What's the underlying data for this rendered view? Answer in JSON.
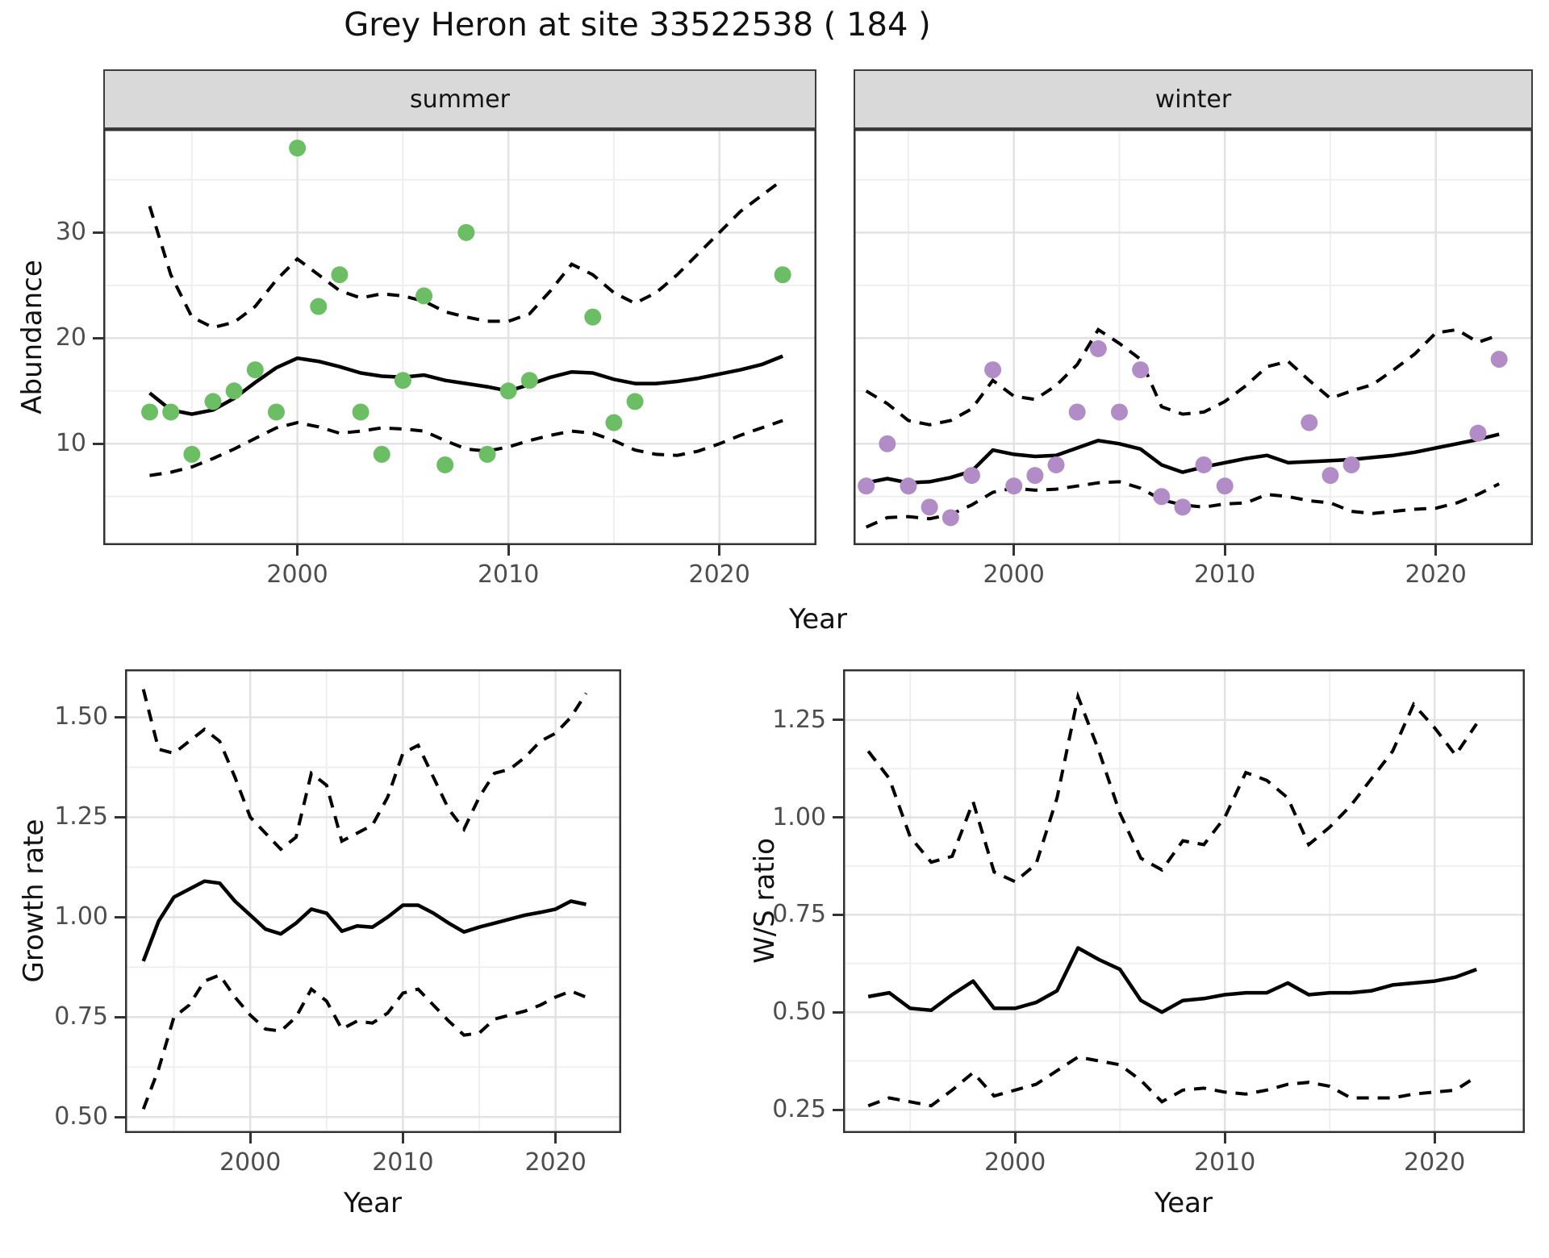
{
  "title": "Grey Heron at site 33522538 ( 184 )",
  "labels": {
    "year": "Year",
    "abundance": "Abundance"
  },
  "style": {
    "point_green": "#6CBE64",
    "point_purple": "#B28CC6",
    "line_color": "#000000",
    "grid_major": "#e2e2e2",
    "grid_minor": "#efefef",
    "panel_border": "#333333",
    "strip_bg": "#d9d9d9",
    "tick_text": "#4d4d4d"
  },
  "chart_data": [
    {
      "id": "summer",
      "type": "line",
      "facet": "summer",
      "title": "summer facet: abundance observations with model fit and dashed 95% interval",
      "xlabel": "Year",
      "ylabel": "Abundance",
      "x_range": [
        1990.8,
        2024.6
      ],
      "y_range": [
        0.4,
        39.8
      ],
      "x_major": [
        2000,
        2010,
        2020
      ],
      "x_minor": [
        1995,
        2005,
        2015
      ],
      "y_major": [
        10,
        20,
        30
      ],
      "y_minor": [
        5,
        15,
        25,
        35
      ],
      "x_tick_labels": [
        "2000",
        "2010",
        "2020"
      ],
      "y_tick_labels": [
        "10",
        "20",
        "30"
      ],
      "show_y_labels": true,
      "years": [
        1993,
        1994,
        1995,
        1996,
        1997,
        1998,
        1999,
        2000,
        2001,
        2002,
        2003,
        2004,
        2005,
        2006,
        2007,
        2008,
        2009,
        2010,
        2011,
        2012,
        2013,
        2014,
        2015,
        2016,
        2017,
        2018,
        2019,
        2020,
        2021,
        2022,
        2023
      ],
      "fit": [
        14.8,
        13.2,
        12.8,
        13.2,
        14.3,
        15.8,
        17.2,
        18.1,
        17.8,
        17.3,
        16.7,
        16.4,
        16.3,
        16.5,
        16.0,
        15.7,
        15.4,
        15.0,
        15.6,
        16.3,
        16.8,
        16.7,
        16.1,
        15.7,
        15.7,
        15.9,
        16.2,
        16.6,
        17.0,
        17.5,
        18.3
      ],
      "upper": [
        32.5,
        26.0,
        22.0,
        21.0,
        21.5,
        23.0,
        25.5,
        27.5,
        26.0,
        24.5,
        23.8,
        24.2,
        24.0,
        23.5,
        22.5,
        22.0,
        21.6,
        21.6,
        22.3,
        24.5,
        27.0,
        26.0,
        24.3,
        23.3,
        24.3,
        26.0,
        28.0,
        30.0,
        32.0,
        33.5,
        35.0
      ],
      "lower": [
        7.0,
        7.3,
        7.8,
        8.6,
        9.5,
        10.5,
        11.5,
        12.0,
        11.6,
        11.0,
        11.2,
        11.5,
        11.4,
        11.2,
        10.3,
        9.5,
        9.3,
        9.7,
        10.3,
        10.8,
        11.2,
        11.0,
        10.3,
        9.4,
        9.0,
        8.9,
        9.3,
        10.0,
        10.8,
        11.5,
        12.2
      ],
      "points": {
        "years": [
          1993,
          1994,
          1995,
          1996,
          1997,
          1998,
          1999,
          2000,
          2001,
          2002,
          2003,
          2004,
          2005,
          2006,
          2007,
          2008,
          2009,
          2010,
          2011,
          2014,
          2015,
          2016,
          2023
        ],
        "values": [
          13,
          13,
          9,
          14,
          15,
          17,
          13,
          38,
          23,
          26,
          13,
          9,
          16,
          24,
          8,
          30,
          9,
          15,
          16,
          22,
          12,
          14,
          26
        ]
      },
      "point_color": "#6CBE64"
    },
    {
      "id": "winter",
      "type": "line",
      "facet": "winter",
      "title": "winter facet: abundance observations with model fit and dashed 95% interval",
      "xlabel": "Year",
      "ylabel": "Abundance",
      "x_range": [
        1992.4,
        2024.6
      ],
      "y_range": [
        0.4,
        39.8
      ],
      "x_major": [
        2000,
        2010,
        2020
      ],
      "x_minor": [
        1995,
        2005,
        2015
      ],
      "y_major": [
        10,
        20,
        30
      ],
      "y_minor": [
        5,
        15,
        25,
        35
      ],
      "x_tick_labels": [
        "2000",
        "2010",
        "2020"
      ],
      "y_tick_labels": [
        "10",
        "20",
        "30"
      ],
      "show_y_labels": false,
      "years": [
        1993,
        1994,
        1995,
        1996,
        1997,
        1998,
        1999,
        2000,
        2001,
        2002,
        2003,
        2004,
        2005,
        2006,
        2007,
        2008,
        2009,
        2010,
        2011,
        2012,
        2013,
        2014,
        2015,
        2016,
        2017,
        2018,
        2019,
        2020,
        2021,
        2022,
        2023
      ],
      "fit": [
        6.3,
        6.7,
        6.3,
        6.4,
        6.8,
        7.4,
        9.4,
        9.0,
        8.8,
        8.9,
        9.6,
        10.3,
        10.0,
        9.5,
        8.0,
        7.3,
        7.8,
        8.2,
        8.6,
        8.9,
        8.2,
        8.3,
        8.4,
        8.5,
        8.7,
        8.9,
        9.2,
        9.6,
        10.0,
        10.4,
        10.9
      ],
      "upper": [
        15.0,
        13.8,
        12.2,
        11.8,
        12.2,
        13.3,
        16.0,
        14.5,
        14.2,
        15.5,
        17.5,
        20.8,
        19.5,
        18.0,
        13.5,
        12.8,
        13.0,
        14.0,
        15.5,
        17.3,
        17.8,
        16.0,
        14.3,
        15.0,
        15.6,
        17.0,
        18.5,
        20.5,
        20.8,
        19.6,
        20.3
      ],
      "lower": [
        2.1,
        3.0,
        3.1,
        2.9,
        3.3,
        4.2,
        5.4,
        5.8,
        5.6,
        5.7,
        6.0,
        6.3,
        6.4,
        5.8,
        4.7,
        4.2,
        4.0,
        4.3,
        4.4,
        5.2,
        5.0,
        4.6,
        4.4,
        3.6,
        3.4,
        3.6,
        3.8,
        3.9,
        4.4,
        5.2,
        6.2
      ],
      "points": {
        "years": [
          1993,
          1994,
          1995,
          1996,
          1997,
          1998,
          1999,
          2000,
          2001,
          2002,
          2003,
          2004,
          2005,
          2006,
          2007,
          2008,
          2009,
          2010,
          2014,
          2015,
          2016,
          2022,
          2023
        ],
        "values": [
          6,
          10,
          6,
          4,
          3,
          7,
          17,
          6,
          7,
          8,
          13,
          19,
          13,
          17,
          5,
          4,
          8,
          6,
          12,
          7,
          8,
          11,
          18
        ]
      },
      "point_color": "#B28CC6"
    },
    {
      "id": "growth",
      "type": "line",
      "facet": null,
      "title": "Annual growth rate with dashed 95% interval",
      "xlabel": "Year",
      "ylabel": "Growth rate",
      "x_range": [
        1991.8,
        2024.3
      ],
      "y_range": [
        0.46,
        1.62
      ],
      "x_major": [
        2000,
        2010,
        2020
      ],
      "x_minor": [
        1995,
        2005,
        2015
      ],
      "y_major": [
        0.5,
        0.75,
        1.0,
        1.25,
        1.5
      ],
      "y_minor": [
        0.625,
        0.875,
        1.125,
        1.375
      ],
      "x_tick_labels": [
        "2000",
        "2010",
        "2020"
      ],
      "y_tick_labels": [
        "0.50",
        "0.75",
        "1.00",
        "1.25",
        "1.50"
      ],
      "show_y_labels": true,
      "years": [
        1993,
        1994,
        1995,
        1996,
        1997,
        1998,
        1999,
        2000,
        2001,
        2002,
        2003,
        2004,
        2005,
        2006,
        2007,
        2008,
        2009,
        2010,
        2011,
        2012,
        2013,
        2014,
        2015,
        2016,
        2017,
        2018,
        2019,
        2020,
        2021,
        2022
      ],
      "fit": [
        0.89,
        0.99,
        1.05,
        1.07,
        1.09,
        1.085,
        1.04,
        1.005,
        0.97,
        0.958,
        0.985,
        1.02,
        1.01,
        0.965,
        0.978,
        0.975,
        1.0,
        1.03,
        1.03,
        1.01,
        0.985,
        0.963,
        0.975,
        0.985,
        0.995,
        1.005,
        1.012,
        1.02,
        1.04,
        1.032
      ],
      "upper": [
        1.57,
        1.42,
        1.41,
        1.44,
        1.47,
        1.44,
        1.35,
        1.25,
        1.21,
        1.17,
        1.2,
        1.36,
        1.33,
        1.19,
        1.21,
        1.23,
        1.3,
        1.41,
        1.43,
        1.35,
        1.27,
        1.22,
        1.3,
        1.36,
        1.37,
        1.4,
        1.44,
        1.46,
        1.5,
        1.56
      ],
      "lower": [
        0.52,
        0.62,
        0.75,
        0.78,
        0.84,
        0.855,
        0.8,
        0.755,
        0.72,
        0.715,
        0.75,
        0.82,
        0.79,
        0.72,
        0.74,
        0.735,
        0.76,
        0.81,
        0.82,
        0.78,
        0.74,
        0.705,
        0.71,
        0.745,
        0.755,
        0.765,
        0.78,
        0.8,
        0.815,
        0.8
      ],
      "points": null,
      "point_color": null
    },
    {
      "id": "ws",
      "type": "line",
      "facet": null,
      "title": "Winter/Summer ratio with dashed 95% interval",
      "xlabel": "Year",
      "ylabel": "W/S ratio",
      "x_range": [
        1991.8,
        2024.3
      ],
      "y_range": [
        0.19,
        1.38
      ],
      "x_major": [
        2000,
        2010,
        2020
      ],
      "x_minor": [
        1995,
        2005,
        2015
      ],
      "y_major": [
        0.25,
        0.5,
        0.75,
        1.0,
        1.25
      ],
      "y_minor": [
        0.375,
        0.625,
        0.875,
        1.125
      ],
      "x_tick_labels": [
        "2000",
        "2010",
        "2020"
      ],
      "y_tick_labels": [
        "0.25",
        "0.50",
        "0.75",
        "1.00",
        "1.25"
      ],
      "show_y_labels": true,
      "years": [
        1993,
        1994,
        1995,
        1996,
        1997,
        1998,
        1999,
        2000,
        2001,
        2002,
        2003,
        2004,
        2005,
        2006,
        2007,
        2008,
        2009,
        2010,
        2011,
        2012,
        2013,
        2014,
        2015,
        2016,
        2017,
        2018,
        2019,
        2020,
        2021,
        2022
      ],
      "fit": [
        0.54,
        0.55,
        0.51,
        0.505,
        0.545,
        0.58,
        0.51,
        0.51,
        0.525,
        0.555,
        0.665,
        0.635,
        0.61,
        0.53,
        0.5,
        0.53,
        0.535,
        0.545,
        0.55,
        0.55,
        0.575,
        0.545,
        0.55,
        0.55,
        0.555,
        0.57,
        0.575,
        0.58,
        0.59,
        0.61
      ],
      "upper": [
        1.17,
        1.1,
        0.95,
        0.885,
        0.9,
        1.04,
        0.86,
        0.835,
        0.88,
        1.05,
        1.31,
        1.17,
        1.01,
        0.895,
        0.865,
        0.94,
        0.93,
        1.0,
        1.115,
        1.095,
        1.05,
        0.93,
        0.975,
        1.03,
        1.1,
        1.17,
        1.29,
        1.23,
        1.16,
        1.24
      ],
      "lower": [
        0.26,
        0.28,
        0.27,
        0.26,
        0.3,
        0.345,
        0.285,
        0.3,
        0.315,
        0.35,
        0.385,
        0.375,
        0.365,
        0.325,
        0.27,
        0.3,
        0.305,
        0.295,
        0.29,
        0.3,
        0.315,
        0.32,
        0.31,
        0.28,
        0.28,
        0.28,
        0.29,
        0.295,
        0.3,
        0.335
      ],
      "points": null,
      "point_color": null
    }
  ]
}
